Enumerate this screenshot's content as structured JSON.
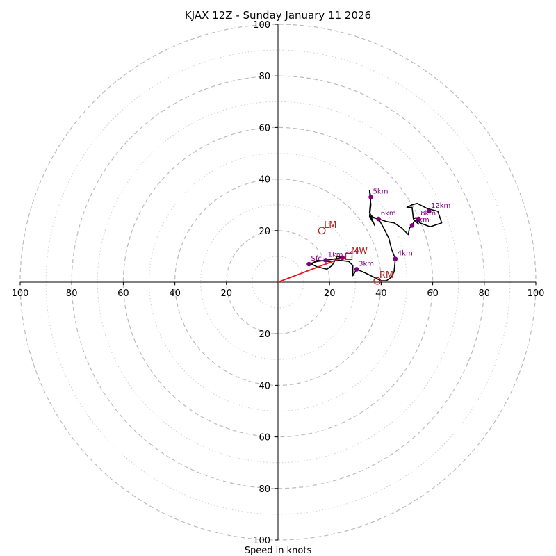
{
  "chart_data": {
    "type": "hodograph",
    "title": "KJAX 12Z - Sunday January 11 2026",
    "xlabel": "Speed in knots",
    "range": 100,
    "ring_major": [
      20,
      40,
      60,
      80,
      100
    ],
    "ring_minor": [
      10,
      30,
      50,
      70,
      90
    ],
    "x_ticks": [
      {
        "value": -100,
        "label": "100"
      },
      {
        "value": -80,
        "label": "80"
      },
      {
        "value": -60,
        "label": "60"
      },
      {
        "value": -40,
        "label": "40"
      },
      {
        "value": -20,
        "label": "20"
      },
      {
        "value": 20,
        "label": "20"
      },
      {
        "value": 40,
        "label": "40"
      },
      {
        "value": 60,
        "label": "60"
      },
      {
        "value": 80,
        "label": "80"
      },
      {
        "value": 100,
        "label": "100"
      }
    ],
    "y_ticks": [
      {
        "value": 100,
        "label": "100"
      },
      {
        "value": 80,
        "label": "80"
      },
      {
        "value": 60,
        "label": "60"
      },
      {
        "value": 40,
        "label": "40"
      },
      {
        "value": 20,
        "label": "20"
      },
      {
        "value": -20,
        "label": "20"
      },
      {
        "value": -40,
        "label": "40"
      },
      {
        "value": -60,
        "label": "60"
      },
      {
        "value": -80,
        "label": "80"
      },
      {
        "value": -100,
        "label": "100"
      }
    ],
    "trace": [
      [
        12,
        7
      ],
      [
        15,
        8
      ],
      [
        18.5,
        8.5
      ],
      [
        22,
        9
      ],
      [
        25,
        9.5
      ],
      [
        23,
        10
      ],
      [
        21,
        6.5
      ],
      [
        19,
        5
      ],
      [
        15,
        6
      ],
      [
        13,
        7
      ],
      [
        15,
        8.5
      ],
      [
        20,
        8
      ],
      [
        24,
        8.5
      ],
      [
        27.5,
        8
      ],
      [
        29,
        6.5
      ],
      [
        29,
        2.5
      ],
      [
        30.5,
        5
      ],
      [
        34,
        3.5
      ],
      [
        38,
        1.5
      ],
      [
        40,
        0.5
      ],
      [
        42,
        0.5
      ],
      [
        44,
        2
      ],
      [
        45,
        4
      ],
      [
        45.5,
        9
      ],
      [
        44,
        13
      ],
      [
        43,
        17
      ],
      [
        41,
        21
      ],
      [
        39,
        24.5
      ],
      [
        37,
        25
      ],
      [
        36,
        26
      ],
      [
        35.5,
        27
      ],
      [
        36,
        33
      ],
      [
        35.5,
        35.5
      ],
      [
        36,
        30
      ],
      [
        35.5,
        25.5
      ],
      [
        37.5,
        22
      ],
      [
        36,
        25.5
      ],
      [
        39,
        24.5
      ],
      [
        42,
        23.5
      ],
      [
        45,
        23
      ],
      [
        48,
        21
      ],
      [
        50.5,
        18.5
      ],
      [
        51,
        21
      ],
      [
        52,
        22
      ],
      [
        53,
        24
      ],
      [
        54.5,
        22.5
      ],
      [
        53.5,
        25
      ],
      [
        52.5,
        24.5
      ],
      [
        52,
        29
      ],
      [
        50,
        29
      ],
      [
        52,
        30
      ],
      [
        54,
        30.5
      ],
      [
        58,
        28.5
      ],
      [
        60,
        28
      ],
      [
        62,
        27.5
      ],
      [
        63.5,
        23
      ],
      [
        59,
        21.5
      ],
      [
        55,
        23
      ],
      [
        54.5,
        24
      ]
    ],
    "height_markers": [
      {
        "label": "Sfc",
        "u": 12,
        "v": 7
      },
      {
        "label": "1km",
        "u": 18.5,
        "v": 8.5
      },
      {
        "label": "2km",
        "u": 25,
        "v": 9.5
      },
      {
        "label": "3km",
        "u": 30.5,
        "v": 5
      },
      {
        "label": "4km",
        "u": 45.5,
        "v": 9
      },
      {
        "label": "5km",
        "u": 36,
        "v": 33
      },
      {
        "label": "6km",
        "u": 39,
        "v": 24.5
      },
      {
        "label": "7km",
        "u": 52,
        "v": 22
      },
      {
        "label": "8km",
        "u": 54.5,
        "v": 24.5
      },
      {
        "label": "12km",
        "u": 58.5,
        "v": 27.5
      }
    ],
    "motion_markers": [
      {
        "label": "LM",
        "u": 17,
        "v": 20,
        "shape": "circle"
      },
      {
        "label": "MW",
        "u": 27.5,
        "v": 10,
        "shape": "square"
      },
      {
        "label": "RM",
        "u": 38.5,
        "v": 0.5,
        "shape": "circle"
      }
    ],
    "shear_vector": {
      "from": [
        0,
        0
      ],
      "to": [
        25,
        9.5
      ]
    },
    "colors": {
      "trace": "#000000",
      "height_marker": "#800080",
      "motion": "#b22222",
      "shear": "#e8161e",
      "grid": "#bbbbbb"
    }
  }
}
